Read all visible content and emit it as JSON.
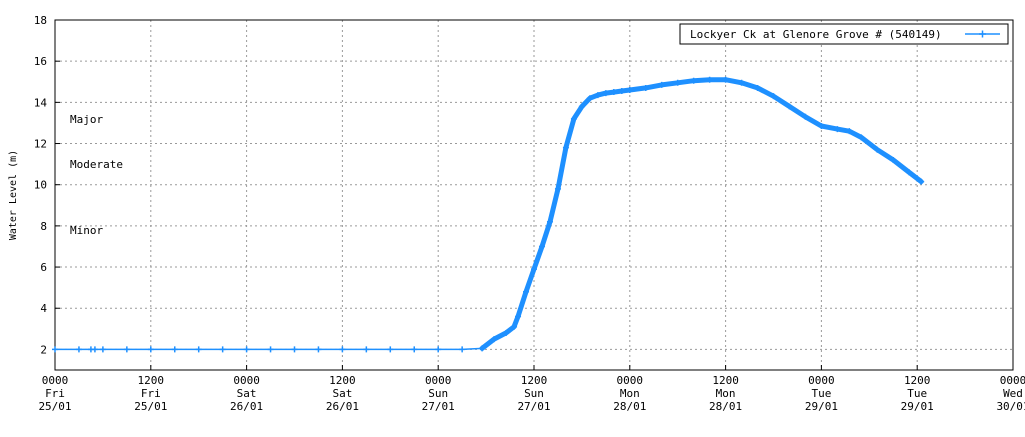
{
  "chart_data": {
    "type": "line",
    "title": "",
    "ylabel": "Water Level (m)",
    "xlabel": "",
    "ylim": [
      1,
      18
    ],
    "yticks": [
      2,
      4,
      6,
      8,
      10,
      12,
      14,
      16,
      18
    ],
    "xlim": [
      0,
      120
    ],
    "grid": true,
    "legend_position": "top-right",
    "x_ticks": [
      {
        "x": 0,
        "time": "0000",
        "day": "Fri",
        "date": "25/01"
      },
      {
        "x": 12,
        "time": "1200",
        "day": "Fri",
        "date": "25/01"
      },
      {
        "x": 24,
        "time": "0000",
        "day": "Sat",
        "date": "26/01"
      },
      {
        "x": 36,
        "time": "1200",
        "day": "Sat",
        "date": "26/01"
      },
      {
        "x": 48,
        "time": "0000",
        "day": "Sun",
        "date": "27/01"
      },
      {
        "x": 60,
        "time": "1200",
        "day": "Sun",
        "date": "27/01"
      },
      {
        "x": 72,
        "time": "0000",
        "day": "Mon",
        "date": "28/01"
      },
      {
        "x": 84,
        "time": "1200",
        "day": "Mon",
        "date": "28/01"
      },
      {
        "x": 96,
        "time": "0000",
        "day": "Tue",
        "date": "29/01"
      },
      {
        "x": 108,
        "time": "1200",
        "day": "Tue",
        "date": "29/01"
      },
      {
        "x": 120,
        "time": "0000",
        "day": "Wed",
        "date": "30/01"
      }
    ],
    "annotations": [
      {
        "text": "Major",
        "y": 13.2
      },
      {
        "text": "Moderate",
        "y": 11.0
      },
      {
        "text": "Minor",
        "y": 7.8
      }
    ],
    "series": [
      {
        "name": "Lockyer Ck at Glenore Grove # (540149)",
        "color": "#1e90ff",
        "points": [
          [
            0,
            2.0
          ],
          [
            3,
            2.0
          ],
          [
            4.5,
            2.0
          ],
          [
            5,
            2.0
          ],
          [
            6,
            2.0
          ],
          [
            9,
            2.0
          ],
          [
            12,
            2.0
          ],
          [
            15,
            2.0
          ],
          [
            18,
            2.0
          ],
          [
            21,
            2.0
          ],
          [
            24,
            2.0
          ],
          [
            27,
            2.0
          ],
          [
            30,
            2.0
          ],
          [
            33,
            2.0
          ],
          [
            36,
            2.0
          ],
          [
            39,
            2.0
          ],
          [
            42,
            2.0
          ],
          [
            45,
            2.0
          ],
          [
            48,
            2.0
          ],
          [
            51,
            2.0
          ],
          [
            53.5,
            2.05
          ],
          [
            55,
            2.5
          ],
          [
            56.5,
            2.8
          ],
          [
            57.5,
            3.1
          ],
          [
            58,
            3.6
          ],
          [
            59,
            4.8
          ],
          [
            60,
            5.9
          ],
          [
            61,
            7.0
          ],
          [
            62,
            8.2
          ],
          [
            63,
            9.8
          ],
          [
            64,
            11.8
          ],
          [
            65,
            13.2
          ],
          [
            66,
            13.8
          ],
          [
            67,
            14.2
          ],
          [
            68,
            14.35
          ],
          [
            69,
            14.45
          ],
          [
            70,
            14.5
          ],
          [
            71,
            14.55
          ],
          [
            72,
            14.6
          ],
          [
            74,
            14.7
          ],
          [
            76,
            14.85
          ],
          [
            78,
            14.95
          ],
          [
            80,
            15.05
          ],
          [
            82,
            15.1
          ],
          [
            84,
            15.1
          ],
          [
            86,
            14.95
          ],
          [
            88,
            14.7
          ],
          [
            90,
            14.3
          ],
          [
            92,
            13.8
          ],
          [
            94,
            13.3
          ],
          [
            96,
            12.85
          ],
          [
            98,
            12.7
          ],
          [
            99.5,
            12.6
          ],
          [
            101,
            12.3
          ],
          [
            103,
            11.7
          ],
          [
            105,
            11.2
          ],
          [
            107,
            10.6
          ],
          [
            108,
            10.3
          ],
          [
            108.5,
            10.15
          ]
        ]
      }
    ]
  }
}
